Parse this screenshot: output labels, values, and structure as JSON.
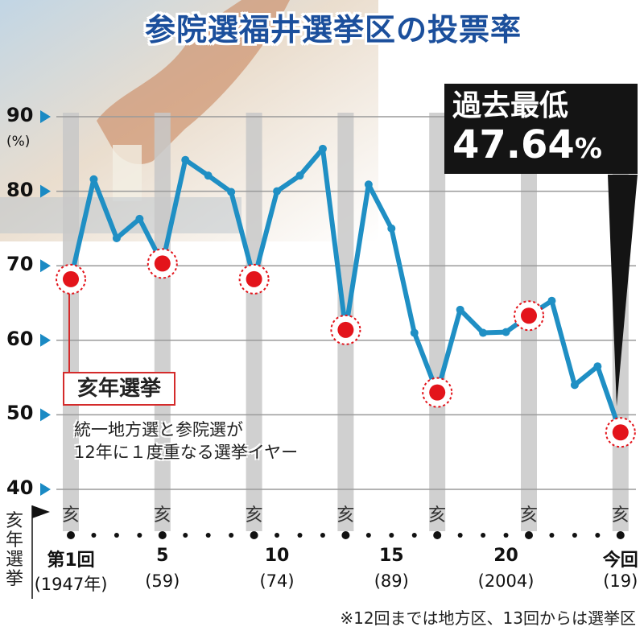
{
  "title": "参院選福井選挙区の投票率",
  "record": {
    "label": "過去最低",
    "value": "47.64",
    "unit": "%"
  },
  "legend": {
    "marker_label": "亥年選挙",
    "description_line1": "統一地方選と参院選が",
    "description_line2": "12年に１度重なる選挙イヤー"
  },
  "note": "※12回までは地方区、13回からは選挙区",
  "side_label": "亥年選挙",
  "colors": {
    "line": "#1f8fc4",
    "marker": "#e3141b",
    "band": "#c8c8c8",
    "title": "#1b4f9c"
  },
  "chart_data": {
    "type": "line",
    "title": "参院選福井選挙区の投票率",
    "ylabel": "(%)",
    "ylim": [
      40,
      90
    ],
    "yticks": [
      "90",
      "80",
      "70",
      "60",
      "50",
      "40"
    ],
    "x": [
      1,
      2,
      3,
      4,
      5,
      6,
      7,
      8,
      9,
      10,
      11,
      12,
      13,
      14,
      15,
      16,
      17,
      18,
      19,
      20,
      21,
      22,
      23,
      24,
      25
    ],
    "values": [
      68.2,
      81.6,
      73.7,
      76.3,
      70.3,
      84.2,
      82.1,
      79.9,
      68.2,
      80.0,
      82.1,
      85.7,
      61.4,
      80.9,
      75.0,
      61.0,
      53.0,
      64.1,
      61.0,
      61.1,
      63.3,
      65.3,
      54.0,
      56.5,
      47.64
    ],
    "highlight_rounds": [
      1,
      5,
      9,
      13,
      17,
      21,
      25
    ],
    "highlight_marker": "亥",
    "x_tick_labels": [
      {
        "round": 1,
        "main": "第1回",
        "sub": "(1947年)"
      },
      {
        "round": 5,
        "main": "5",
        "sub": "(59)"
      },
      {
        "round": 10,
        "main": "10",
        "sub": "(74)"
      },
      {
        "round": 15,
        "main": "15",
        "sub": "(89)"
      },
      {
        "round": 20,
        "main": "20",
        "sub": "(2004)"
      },
      {
        "round": 25,
        "main": "今回",
        "sub": "(19)"
      }
    ],
    "annotation": "過去最低 47.64%",
    "grid": true
  }
}
